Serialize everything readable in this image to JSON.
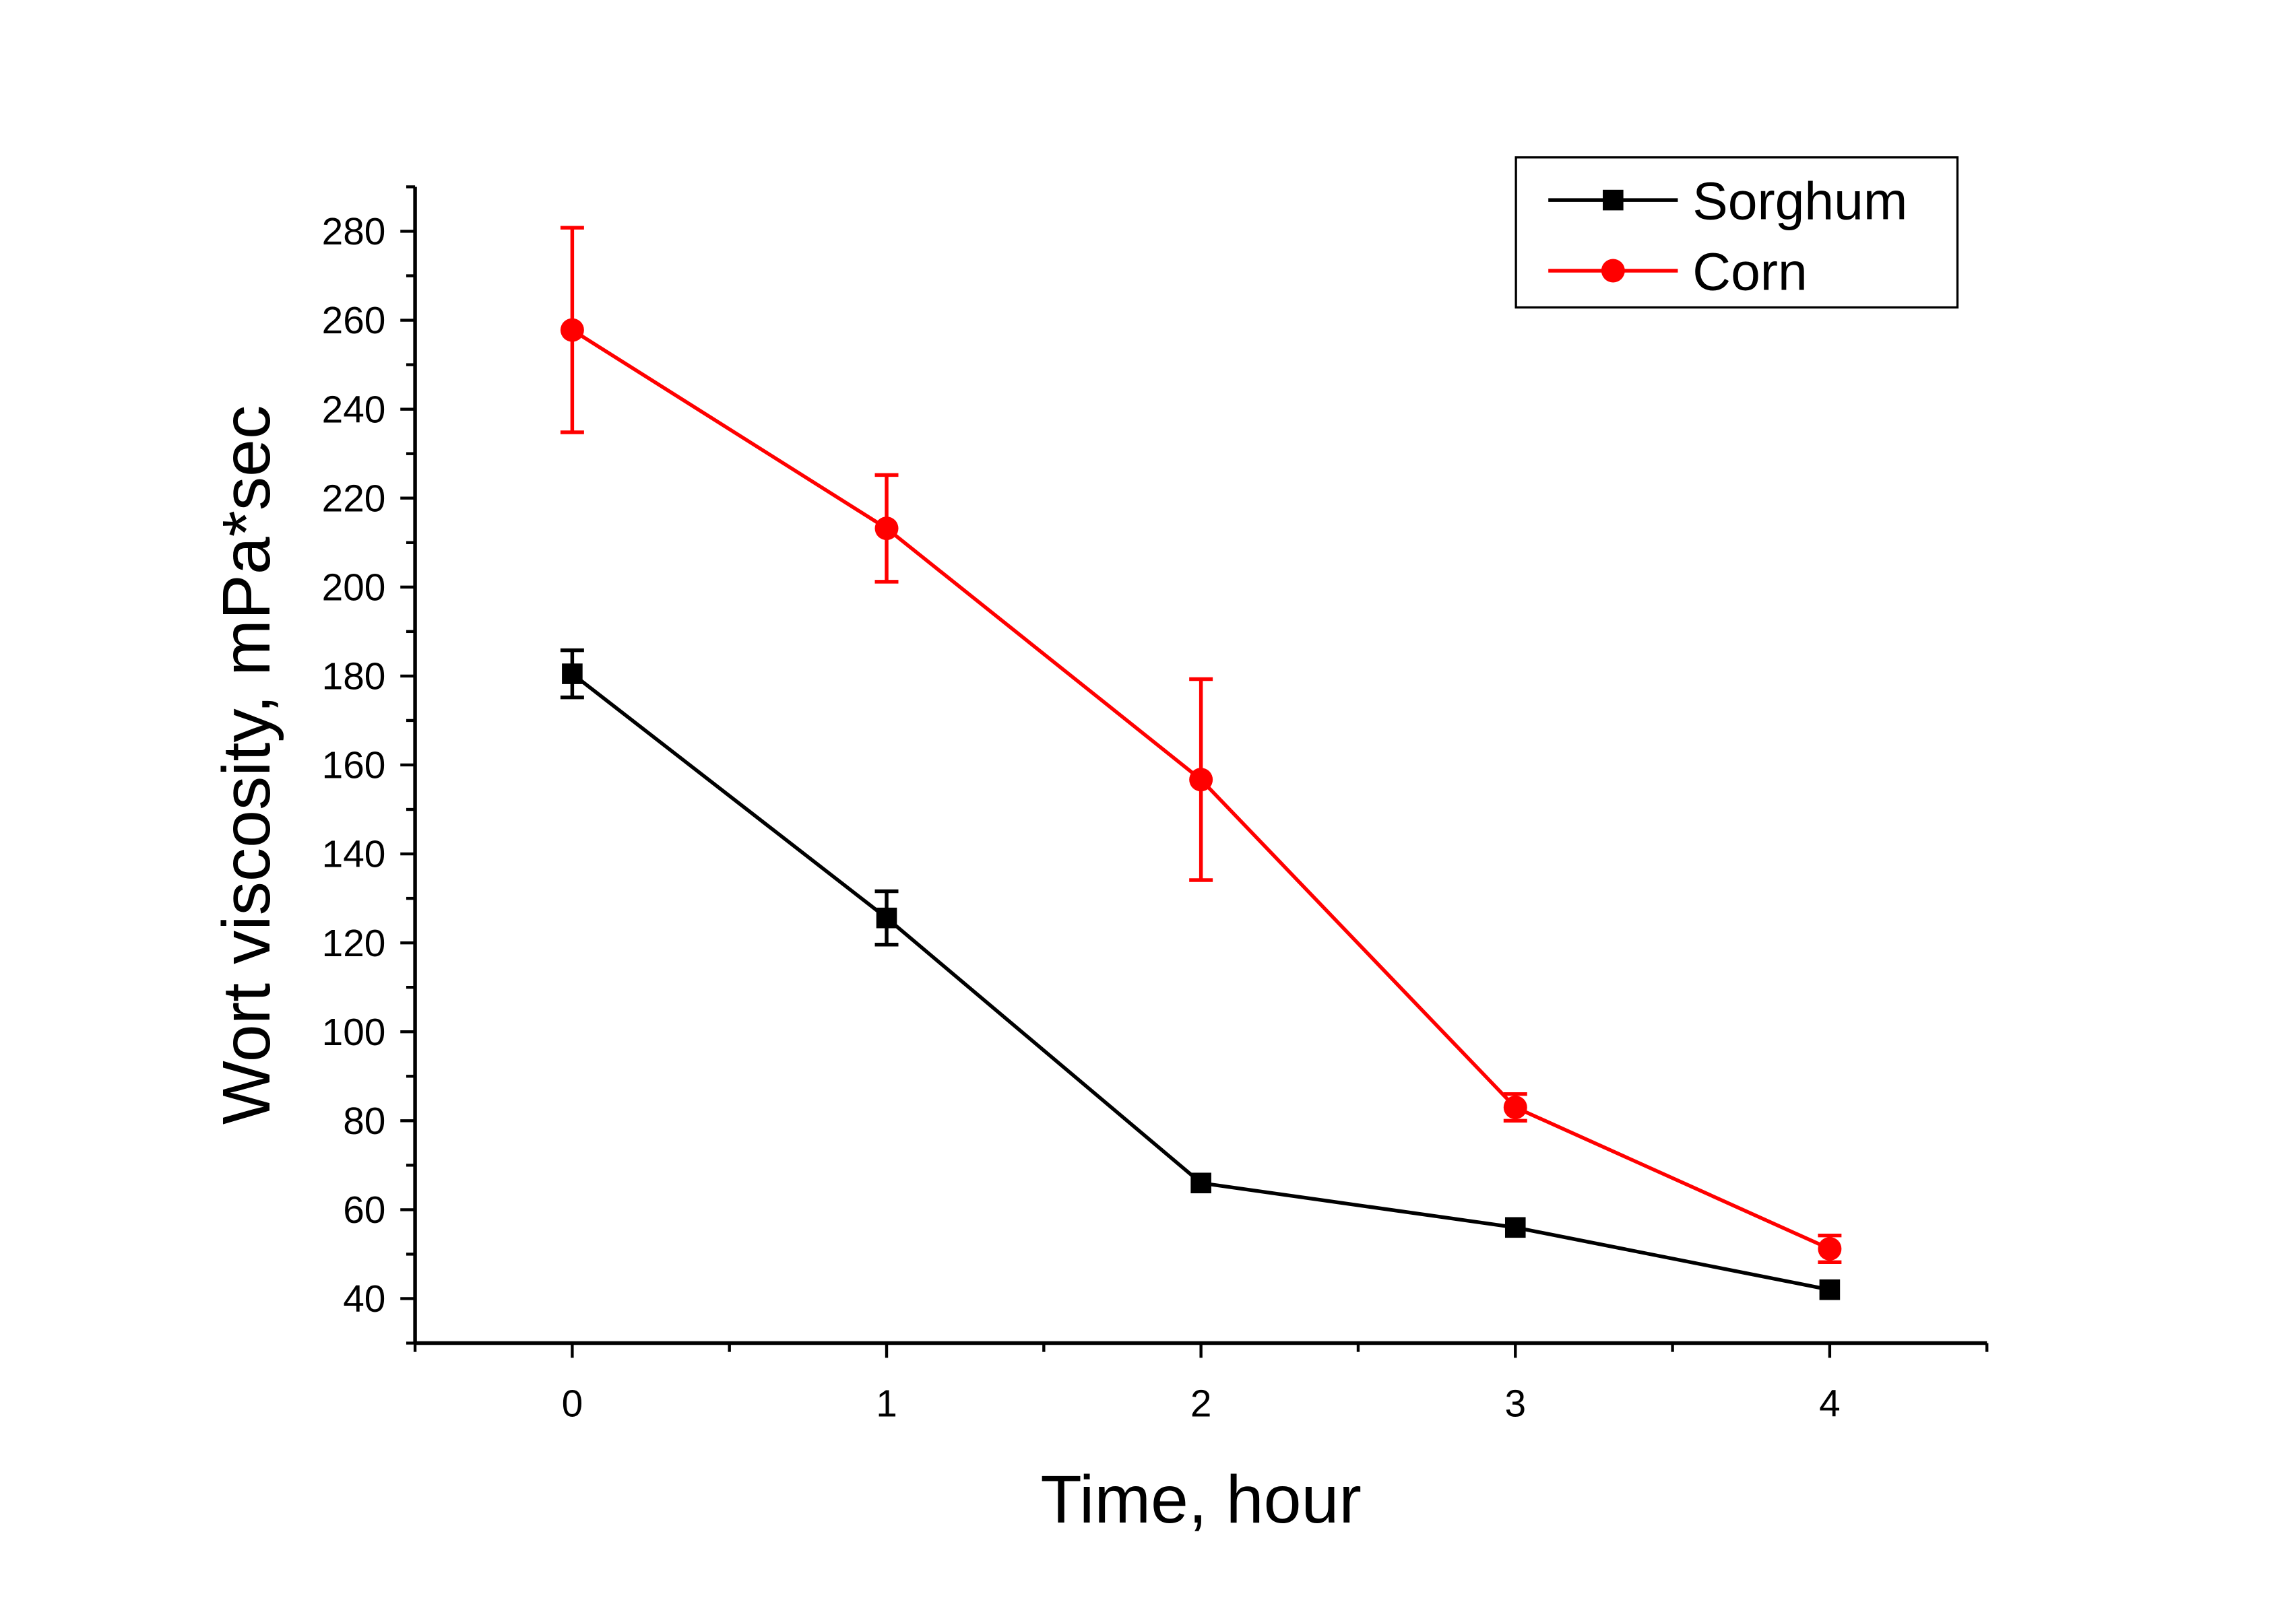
{
  "chart_data": {
    "type": "line",
    "title": "",
    "xlabel": "Time, hour",
    "ylabel": "Wort viscosity, mPa*sec",
    "xlim": [
      -0.5,
      4.5
    ],
    "ylim": [
      30,
      290
    ],
    "x": [
      0,
      1,
      2,
      3,
      4
    ],
    "x_ticks": [
      "0",
      "1",
      "2",
      "3",
      "4"
    ],
    "y_ticks": [
      "40",
      "60",
      "80",
      "100",
      "120",
      "140",
      "160",
      "180",
      "200",
      "220",
      "240",
      "260",
      "280"
    ],
    "grid": false,
    "legend_position": "top-right",
    "series": [
      {
        "name": "Sorghum",
        "color": "#000000",
        "marker": "square",
        "values": [
          180.5,
          125.6,
          66,
          56,
          42
        ],
        "errors": [
          5.3,
          6,
          0,
          0,
          0
        ]
      },
      {
        "name": "Corn",
        "color": "#ff0000",
        "marker": "circle",
        "values": [
          257.8,
          213.2,
          156.7,
          83,
          51.2
        ],
        "errors": [
          23,
          12,
          22.6,
          3,
          3
        ]
      }
    ]
  }
}
